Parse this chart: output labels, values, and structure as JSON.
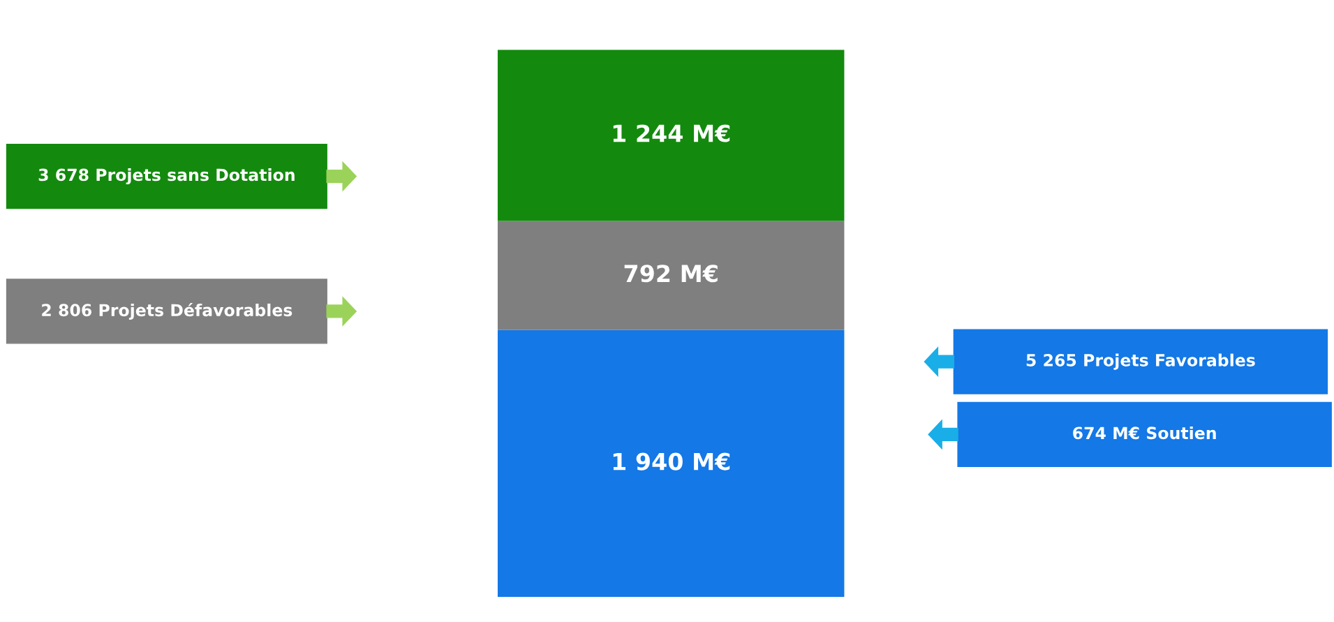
{
  "chart_data": {
    "type": "bar",
    "stacked": true,
    "categories": [
      null
    ],
    "series": [
      {
        "color": "#1478e6",
        "values": [
          1940
        ],
        "value_labels": [
          "1 940 M€"
        ]
      },
      {
        "color": "#7f7f7f",
        "values": [
          792
        ],
        "value_labels": [
          "792 M€"
        ]
      },
      {
        "color": "#138a0e",
        "values": [
          1244
        ],
        "value_labels": [
          "1 244 M€"
        ]
      }
    ],
    "annotations": [
      "3 678 Projets sans Dotation",
      "2 806 Projets Défavorables",
      "5 265 Projets Favorables",
      "674 M€ Soutien"
    ]
  }
}
